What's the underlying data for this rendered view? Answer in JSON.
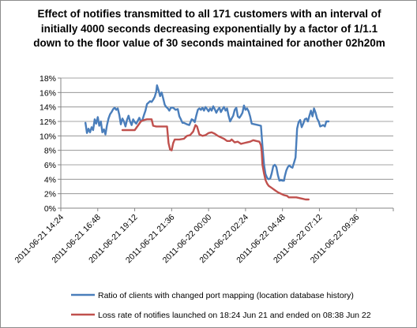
{
  "chart_data": {
    "type": "line",
    "title": "Effect of notifies transmitted to all 171 customers with an interval of initially 4000 seconds decreasing exponentially by a factor of 1/1.1 down to the floor value of 30 seconds maintained for another 02h20m",
    "xlabel": "",
    "ylabel": "",
    "x_ticks": [
      "2011-06-21 14:24",
      "2011-06-21 16:48",
      "2011-06-21 19:12",
      "2011-06-21 21:36",
      "2011-06-22 00:00",
      "2011-06-22 02:24",
      "2011-06-22 04:48",
      "2011-06-22 07:12",
      "2011-06-22 09:36"
    ],
    "y_ticks": [
      "0%",
      "2%",
      "4%",
      "6%",
      "8%",
      "10%",
      "12%",
      "14%",
      "16%",
      "18%"
    ],
    "x_range_hours": [
      0,
      21.6
    ],
    "ylim": [
      0,
      18
    ],
    "grid": "horizontal",
    "legend_position": "bottom",
    "series": [
      {
        "name": "Ratio of clients with changed port mapping (location database history)",
        "color": "#4a7ebb",
        "points": [
          [
            1.6,
            11.8
          ],
          [
            1.7,
            10.4
          ],
          [
            1.8,
            11.0
          ],
          [
            1.9,
            10.5
          ],
          [
            2.0,
            11.2
          ],
          [
            2.1,
            10.8
          ],
          [
            2.2,
            12.3
          ],
          [
            2.3,
            11.7
          ],
          [
            2.4,
            12.6
          ],
          [
            2.5,
            11.4
          ],
          [
            2.6,
            12.0
          ],
          [
            2.7,
            10.5
          ],
          [
            2.8,
            10.9
          ],
          [
            2.9,
            10.2
          ],
          [
            3.0,
            11.5
          ],
          [
            3.1,
            12.4
          ],
          [
            3.2,
            13.0
          ],
          [
            3.3,
            13.3
          ],
          [
            3.4,
            13.7
          ],
          [
            3.5,
            13.9
          ],
          [
            3.6,
            13.6
          ],
          [
            3.7,
            13.8
          ],
          [
            3.8,
            12.9
          ],
          [
            3.9,
            11.6
          ],
          [
            4.0,
            12.4
          ],
          [
            4.1,
            12.0
          ],
          [
            4.2,
            11.3
          ],
          [
            4.3,
            12.2
          ],
          [
            4.4,
            12.8
          ],
          [
            4.5,
            12.0
          ],
          [
            4.6,
            11.5
          ],
          [
            4.7,
            12.3
          ],
          [
            4.8,
            11.9
          ],
          [
            4.9,
            11.7
          ],
          [
            5.0,
            12.1
          ],
          [
            5.1,
            12.5
          ],
          [
            5.2,
            12.0
          ],
          [
            5.3,
            12.2
          ],
          [
            5.4,
            12.9
          ],
          [
            5.5,
            13.5
          ],
          [
            5.6,
            14.4
          ],
          [
            5.7,
            14.6
          ],
          [
            5.8,
            14.8
          ],
          [
            5.9,
            14.7
          ],
          [
            6.0,
            15.0
          ],
          [
            6.1,
            15.4
          ],
          [
            6.2,
            16.1
          ],
          [
            6.25,
            17.0
          ],
          [
            6.35,
            16.3
          ],
          [
            6.45,
            15.5
          ],
          [
            6.55,
            16.0
          ],
          [
            6.65,
            15.2
          ],
          [
            6.75,
            14.3
          ],
          [
            6.85,
            14.0
          ],
          [
            6.95,
            13.8
          ],
          [
            7.05,
            13.5
          ],
          [
            7.15,
            13.9
          ],
          [
            7.3,
            13.9
          ],
          [
            7.45,
            13.6
          ],
          [
            7.6,
            13.7
          ],
          [
            7.7,
            12.7
          ],
          [
            7.8,
            12.3
          ],
          [
            7.9,
            11.8
          ],
          [
            8.0,
            11.8
          ],
          [
            8.2,
            11.6
          ],
          [
            8.35,
            11.5
          ],
          [
            8.5,
            12.3
          ],
          [
            8.6,
            12.2
          ],
          [
            8.7,
            11.9
          ],
          [
            8.8,
            12.8
          ],
          [
            8.9,
            13.6
          ],
          [
            9.0,
            13.8
          ],
          [
            9.1,
            13.6
          ],
          [
            9.2,
            13.9
          ],
          [
            9.3,
            13.5
          ],
          [
            9.4,
            14.0
          ],
          [
            9.5,
            13.7
          ],
          [
            9.6,
            13.4
          ],
          [
            9.7,
            13.8
          ],
          [
            9.8,
            13.5
          ],
          [
            9.9,
            14.1
          ],
          [
            10.0,
            13.7
          ],
          [
            10.1,
            13.2
          ],
          [
            10.2,
            13.6
          ],
          [
            10.3,
            13.9
          ],
          [
            10.4,
            13.3
          ],
          [
            10.5,
            13.7
          ],
          [
            10.6,
            14.0
          ],
          [
            10.7,
            13.5
          ],
          [
            10.8,
            13.8
          ],
          [
            10.9,
            12.8
          ],
          [
            11.0,
            12.0
          ],
          [
            11.1,
            12.4
          ],
          [
            11.2,
            12.8
          ],
          [
            11.3,
            13.6
          ],
          [
            11.4,
            13.9
          ],
          [
            11.5,
            12.7
          ],
          [
            11.6,
            12.5
          ],
          [
            11.7,
            12.8
          ],
          [
            11.8,
            13.2
          ],
          [
            11.9,
            14.2
          ],
          [
            12.0,
            13.6
          ],
          [
            12.1,
            13.8
          ],
          [
            12.2,
            13.4
          ],
          [
            12.3,
            12.7
          ],
          [
            12.4,
            11.7
          ],
          [
            12.6,
            11.6
          ],
          [
            12.8,
            11.5
          ],
          [
            13.0,
            11.4
          ],
          [
            13.1,
            8.6
          ],
          [
            13.2,
            6.0
          ],
          [
            13.3,
            4.7
          ],
          [
            13.4,
            4.2
          ],
          [
            13.5,
            4.0
          ],
          [
            13.6,
            4.1
          ],
          [
            13.7,
            4.8
          ],
          [
            13.8,
            5.8
          ],
          [
            13.9,
            6.0
          ],
          [
            14.0,
            5.7
          ],
          [
            14.1,
            4.6
          ],
          [
            14.2,
            3.8
          ],
          [
            14.3,
            3.9
          ],
          [
            14.4,
            3.8
          ],
          [
            14.5,
            3.8
          ],
          [
            14.55,
            4.4
          ],
          [
            14.65,
            5.2
          ],
          [
            14.75,
            5.7
          ],
          [
            14.85,
            5.9
          ],
          [
            14.95,
            5.7
          ],
          [
            15.05,
            5.6
          ],
          [
            15.15,
            6.3
          ],
          [
            15.25,
            7.0
          ],
          [
            15.35,
            11.0
          ],
          [
            15.45,
            11.9
          ],
          [
            15.55,
            12.2
          ],
          [
            15.65,
            11.2
          ],
          [
            15.75,
            11.7
          ],
          [
            15.85,
            12.3
          ],
          [
            15.95,
            12.4
          ],
          [
            16.05,
            12.0
          ],
          [
            16.15,
            12.8
          ],
          [
            16.25,
            13.5
          ],
          [
            16.35,
            12.7
          ],
          [
            16.45,
            13.8
          ],
          [
            16.55,
            13.2
          ],
          [
            16.65,
            12.4
          ],
          [
            16.75,
            12.0
          ],
          [
            16.85,
            11.3
          ],
          [
            16.95,
            11.4
          ],
          [
            17.05,
            11.5
          ],
          [
            17.15,
            11.3
          ],
          [
            17.25,
            12.0
          ],
          [
            17.4,
            12.0
          ]
        ]
      },
      {
        "name": "Loss rate of notifies launched on 18:24 Jun 21 and ended on 08:38 Jun 22",
        "color": "#c0504d",
        "points": [
          [
            4.0,
            10.8
          ],
          [
            4.4,
            10.8
          ],
          [
            4.8,
            10.8
          ],
          [
            5.0,
            11.4
          ],
          [
            5.2,
            12.0
          ],
          [
            5.4,
            12.2
          ],
          [
            5.6,
            12.3
          ],
          [
            5.9,
            12.3
          ],
          [
            6.0,
            11.4
          ],
          [
            6.2,
            11.3
          ],
          [
            6.5,
            11.3
          ],
          [
            6.9,
            11.3
          ],
          [
            7.0,
            9.0
          ],
          [
            7.1,
            8.1
          ],
          [
            7.2,
            8.0
          ],
          [
            7.3,
            9.0
          ],
          [
            7.4,
            9.5
          ],
          [
            7.7,
            9.5
          ],
          [
            8.0,
            9.6
          ],
          [
            8.2,
            10.0
          ],
          [
            8.4,
            10.1
          ],
          [
            8.6,
            10.6
          ],
          [
            8.75,
            11.5
          ],
          [
            8.85,
            11.3
          ],
          [
            9.0,
            10.2
          ],
          [
            9.2,
            10.0
          ],
          [
            9.4,
            10.1
          ],
          [
            9.6,
            10.4
          ],
          [
            9.8,
            10.5
          ],
          [
            10.0,
            10.3
          ],
          [
            10.2,
            10.0
          ],
          [
            10.4,
            9.8
          ],
          [
            10.6,
            9.6
          ],
          [
            10.8,
            9.3
          ],
          [
            11.0,
            9.3
          ],
          [
            11.1,
            9.5
          ],
          [
            11.3,
            9.1
          ],
          [
            11.5,
            9.2
          ],
          [
            11.7,
            8.9
          ],
          [
            11.9,
            9.0
          ],
          [
            12.1,
            9.1
          ],
          [
            12.3,
            9.2
          ],
          [
            12.5,
            9.4
          ],
          [
            12.7,
            9.3
          ],
          [
            12.9,
            9.2
          ],
          [
            13.0,
            8.7
          ],
          [
            13.05,
            7.8
          ],
          [
            13.1,
            6.0
          ],
          [
            13.2,
            4.8
          ],
          [
            13.3,
            3.9
          ],
          [
            13.4,
            3.4
          ],
          [
            13.5,
            3.1
          ],
          [
            13.7,
            2.8
          ],
          [
            13.9,
            2.5
          ],
          [
            14.1,
            2.2
          ],
          [
            14.3,
            2.0
          ],
          [
            14.5,
            1.8
          ],
          [
            14.7,
            1.7
          ],
          [
            14.8,
            1.5
          ],
          [
            15.1,
            1.5
          ],
          [
            15.3,
            1.5
          ],
          [
            15.5,
            1.4
          ],
          [
            15.7,
            1.3
          ],
          [
            15.9,
            1.2
          ],
          [
            16.1,
            1.2
          ]
        ]
      }
    ]
  }
}
